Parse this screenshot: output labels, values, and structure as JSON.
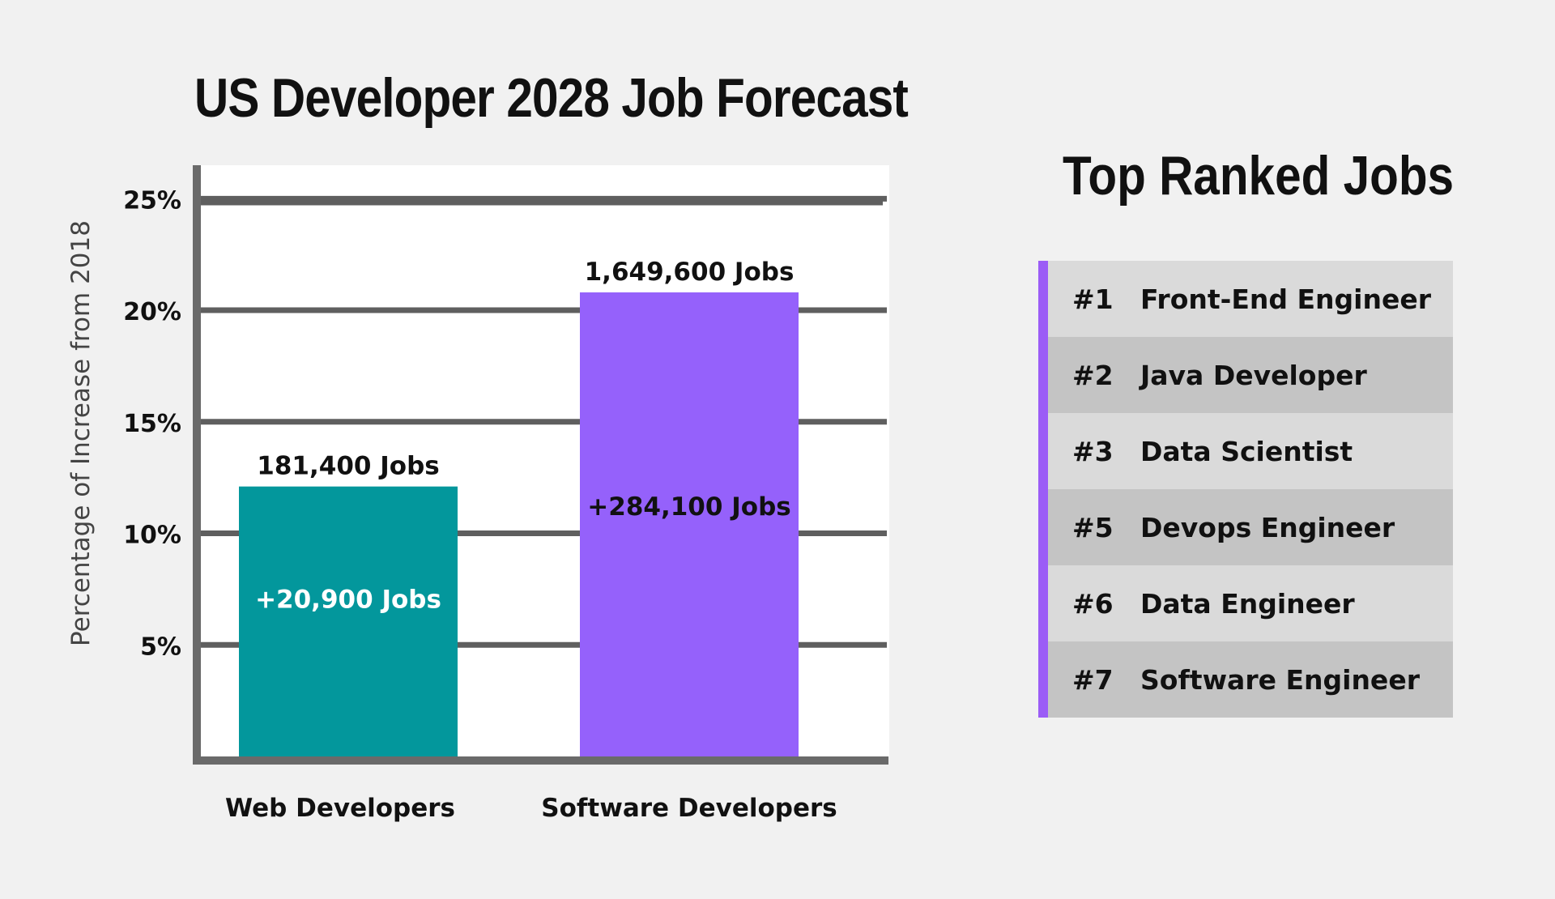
{
  "title": "US Developer 2028 Job Forecast",
  "chart_data": {
    "type": "bar",
    "categories": [
      "Web Developers",
      "Software Developers"
    ],
    "values": [
      12.1,
      20.8
    ],
    "ylabel": "Percentage of Increase from 2018",
    "xlabel": "",
    "ylim": [
      0,
      26.5
    ],
    "yticks": [
      5,
      10,
      15,
      20,
      25
    ],
    "ytick_labels": [
      "5%",
      "10%",
      "15%",
      "20%",
      "25%"
    ],
    "top_labels": [
      "181,400 Jobs",
      "1,649,600 Jobs"
    ],
    "inner_labels": [
      "+20,900 Jobs",
      "+284,100 Jobs"
    ],
    "colors": [
      "#03979c",
      "#9561fb"
    ],
    "inner_label_colors": [
      "#ffffff",
      "#111111"
    ],
    "grid": true,
    "legend": "none"
  },
  "top_ranked": {
    "title": "Top Ranked Jobs",
    "accent_color": "#9b5cf6",
    "items": [
      {
        "rank": "#1",
        "name": "Front-End Engineer"
      },
      {
        "rank": "#2",
        "name": "Java Developer"
      },
      {
        "rank": "#3",
        "name": "Data Scientist"
      },
      {
        "rank": "#5",
        "name": "Devops Engineer"
      },
      {
        "rank": "#6",
        "name": "Data Engineer"
      },
      {
        "rank": "#7",
        "name": "Software Engineer"
      }
    ]
  }
}
